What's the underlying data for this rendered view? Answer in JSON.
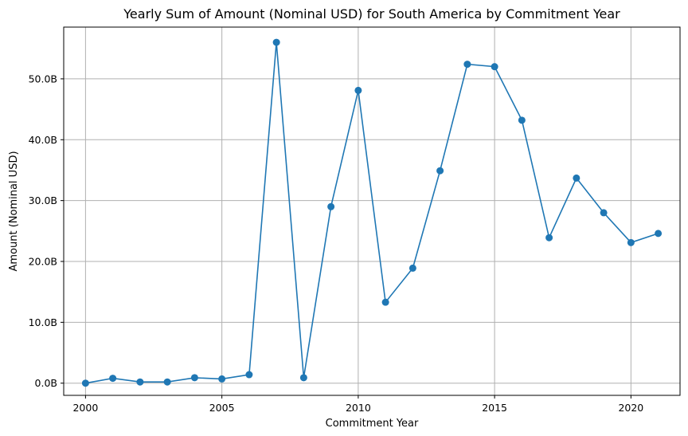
{
  "chart_data": {
    "type": "line",
    "title": "Yearly Sum of Amount (Nominal USD) for South America by Commitment Year",
    "xlabel": "Commitment Year",
    "ylabel": "Amount (Nominal USD)",
    "xlim": [
      1999.2,
      2021.8
    ],
    "ylim": [
      -2.0,
      58.5
    ],
    "x_ticks": [
      2000,
      2005,
      2010,
      2015,
      2020
    ],
    "y_ticks": [
      0,
      10,
      20,
      30,
      40,
      50
    ],
    "y_tick_labels": [
      "0.0B",
      "10.0B",
      "20.0B",
      "30.0B",
      "40.0B",
      "50.0B"
    ],
    "grid": true,
    "marker": "circle",
    "series": [
      {
        "color": "#1f77b4",
        "x": [
          2000,
          2001,
          2002,
          2003,
          2004,
          2005,
          2006,
          2007,
          2008,
          2009,
          2010,
          2011,
          2012,
          2013,
          2014,
          2015,
          2016,
          2017,
          2018,
          2019,
          2020,
          2021
        ],
        "values": [
          0.0,
          0.8,
          0.2,
          0.2,
          0.9,
          0.7,
          1.4,
          56.0,
          0.9,
          29.0,
          48.1,
          13.3,
          18.9,
          34.9,
          52.4,
          52.0,
          43.2,
          23.9,
          33.7,
          28.0,
          23.1,
          24.6
        ]
      }
    ]
  }
}
